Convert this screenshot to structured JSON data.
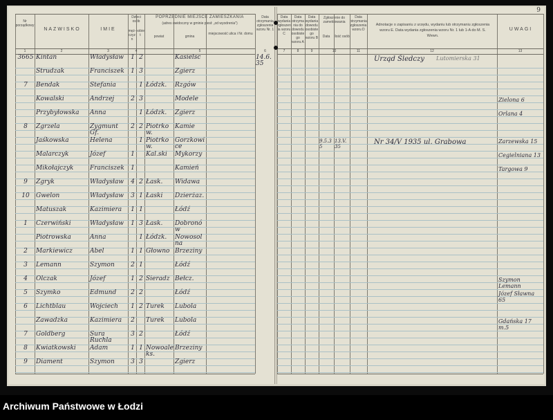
{
  "page_number": "9",
  "left_header": {
    "no": "Nr porządkowy",
    "surname": "NAZWISKO",
    "first_name": "IMIE",
    "age_group": "Dzieci osób",
    "age_sub1": "męż-czyzn",
    "age_sub2": "kobiet",
    "prev_residence": "POPRZEDNIE MIEJSCE ZAMIESZKANIA",
    "prev_residence_note": "(adres uwidoczny w gminie piesł: „od wyodrenia\")",
    "district": "powiat",
    "commune": "gmina",
    "locality": "miejscowość ulica i Nr. domu",
    "date_col": "Data otrzymania zgłoszenia wzoru Nr. 1",
    "col_nums": [
      "1",
      "2",
      "3",
      "4",
      "5",
      "6"
    ]
  },
  "right_header": {
    "c7": "Data wydania zgłoszenia wzoru C",
    "c8": "Data otrzymania do dowodu osobistego wzoru A",
    "c9": "Data wydania dowodu osobistego wzoru B",
    "c10": "Zgłoszenie do zameldowania",
    "c10a": "Data",
    "c10b": "Ilość osób",
    "c11": "Data otrzymania zgłoszenia wzoru D",
    "c12": "Adnotacje o zapisaniu z urzędu, wydaniu lub otrzymaniu zgłoszenia wzoru E. Data wydania zgłoszenia wzoru Nr. 1 lub 1-A do M. S. Wewn.",
    "c13": "UWAGI",
    "col_nums": [
      "7",
      "8",
      "9",
      "10",
      "11",
      "12",
      "13"
    ]
  },
  "rows": [
    {
      "no": "3665",
      "surname": "Kintan",
      "name": "Władysław",
      "m": "1",
      "f": "2",
      "powiat": "",
      "gmina": "Kasielsc",
      "date": "14.6.35"
    },
    {
      "no": "",
      "surname": "Strudzak",
      "name": "Franciszek",
      "m": "1",
      "f": "3",
      "powiat": "",
      "gmina": "Zgierz",
      "date": ""
    },
    {
      "no": "7",
      "surname": "Bendak",
      "name": "Stefania",
      "m": "",
      "f": "1",
      "powiat": "Łódzk.",
      "gmina": "Rzgów",
      "date": ""
    },
    {
      "no": "",
      "surname": "Kowalski",
      "name": "Andrzej",
      "m": "2",
      "f": "3",
      "powiat": "",
      "gmina": "Modele",
      "date": ""
    },
    {
      "no": "",
      "surname": "Przybyłowska",
      "name": "Anna",
      "m": "",
      "f": "1",
      "powiat": "Łódzk.",
      "gmina": "Zgierz",
      "date": ""
    },
    {
      "no": "8",
      "surname": "Zgrzela",
      "name": "Zygmunt Gf.",
      "m": "2",
      "f": "2",
      "powiat": "Piotrkow.",
      "gmina": "Kamie",
      "date": ""
    },
    {
      "no": "",
      "surname": "Jaśkowska",
      "name": "Helena",
      "m": "",
      "f": "1",
      "powiat": "Piotrkow.",
      "gmina": "Gorzkowice",
      "date": ""
    },
    {
      "no": "",
      "surname": "Malarczyk",
      "name": "Józef",
      "m": "1",
      "f": "",
      "powiat": "Kal.ski",
      "gmina": "Mykorzy",
      "date": ""
    },
    {
      "no": "",
      "surname": "Mikołajczyk",
      "name": "Franciszek",
      "m": "1",
      "f": "",
      "powiat": "",
      "gmina": "Kamień",
      "date": ""
    },
    {
      "no": "9",
      "surname": "Zgryk",
      "name": "Władysław",
      "m": "4",
      "f": "2",
      "powiat": "Łask.",
      "gmina": "Widawa",
      "date": ""
    },
    {
      "no": "10",
      "surname": "Gwelon",
      "name": "Władysław",
      "m": "3",
      "f": "1",
      "powiat": "Łaski",
      "gmina": "Dzierżaz.",
      "date": ""
    },
    {
      "no": "",
      "surname": "Matuszak",
      "name": "Kazimiera",
      "m": "1",
      "f": "1",
      "powiat": "",
      "gmina": "Łódź",
      "date": ""
    },
    {
      "no": "1",
      "surname": "Czerwiński",
      "name": "Władysław",
      "m": "1",
      "f": "3",
      "powiat": "Łask.",
      "gmina": "Dobronów",
      "date": ""
    },
    {
      "no": "",
      "surname": "Piotrowska",
      "name": "Anna",
      "m": "",
      "f": "1",
      "powiat": "Łódzk.",
      "gmina": "Nowosolna",
      "date": ""
    },
    {
      "no": "2",
      "surname": "Markiewicz",
      "name": "Abel",
      "m": "1",
      "f": "1",
      "powiat": "Głowno",
      "gmina": "Brzeziny",
      "date": ""
    },
    {
      "no": "3",
      "surname": "Lemann",
      "name": "Szymon",
      "m": "2",
      "f": "1",
      "powiat": "",
      "gmina": "Łódź",
      "date": ""
    },
    {
      "no": "4",
      "surname": "Olczak",
      "name": "Józef",
      "m": "1",
      "f": "2",
      "powiat": "Sieradz",
      "gmina": "Bełcz.",
      "date": ""
    },
    {
      "no": "5",
      "surname": "Szymko",
      "name": "Edmund",
      "m": "2",
      "f": "2",
      "powiat": "",
      "gmina": "Łódź",
      "date": ""
    },
    {
      "no": "6",
      "surname": "Lichtblau",
      "name": "Wojciech",
      "m": "1",
      "f": "2",
      "powiat": "Turek",
      "gmina": "Lubola",
      "date": ""
    },
    {
      "no": "",
      "surname": "Zawadzka",
      "name": "Kazimiera",
      "m": "2",
      "f": "",
      "powiat": "Turek",
      "gmina": "Lubola",
      "date": ""
    },
    {
      "no": "7",
      "surname": "Goldberg",
      "name": "Sura Ruchla",
      "m": "3",
      "f": "2",
      "powiat": "",
      "gmina": "Łódź",
      "date": ""
    },
    {
      "no": "8",
      "surname": "Kwiatkowski",
      "name": "Adam",
      "m": "1",
      "f": "1",
      "powiat": "Nowoaleks.",
      "gmina": "Brzeziny",
      "date": ""
    },
    {
      "no": "9",
      "surname": "Diament",
      "name": "Szymon",
      "m": "3",
      "f": "3",
      "powiat": "",
      "gmina": "Zgierz",
      "date": ""
    }
  ],
  "right_notes": {
    "r1_c12": "Urząd Śledczy",
    "r1_c12b": "Lutomierska 31",
    "r7_c10": "9.5.35",
    "r7_c10b": "13.V.35",
    "r7_c12": "Nr 34/V 1935 ul. Grabowa",
    "r4_c13": "Zielona 6",
    "r5_c13": "Orlana 4",
    "r7_c13": "Zarzewska 15",
    "r8_c13": "Cegielniana 13",
    "r9_c13": "Targowa 9",
    "r17_c13": "Szymon Lemann",
    "r18_c13": "Józef Sławna 65",
    "r20_c13": "Gdańska 17 m.5"
  },
  "footer": {
    "archive": "Archiwum Państwowe w Łodzi"
  }
}
